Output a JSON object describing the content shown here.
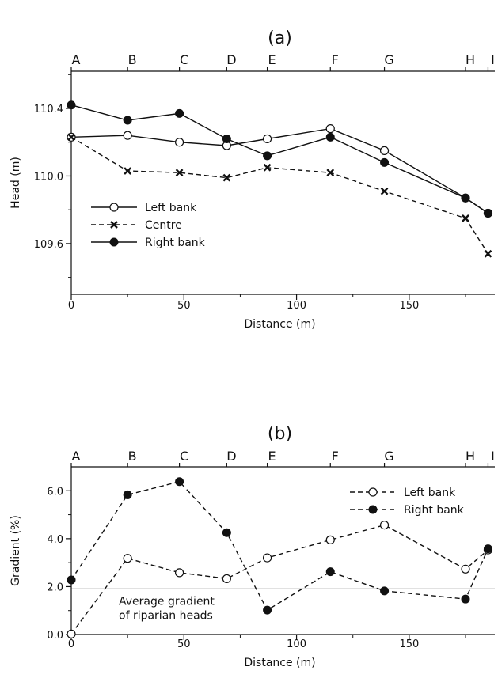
{
  "chart_data": [
    {
      "type": "line",
      "panel_label": "(a)",
      "xlabel": "Distance (m)",
      "ylabel": "Head (m)",
      "xlim": [
        0,
        188
      ],
      "ylim": [
        109.3,
        110.62
      ],
      "xticks": [
        0,
        50,
        100,
        150
      ],
      "yticks": [
        109.6,
        110.0,
        110.4
      ],
      "ytick_labels": [
        "109.6",
        "110.0",
        "110.4"
      ],
      "top_labels": [
        {
          "label": "A",
          "x": 0
        },
        {
          "label": "B",
          "x": 25
        },
        {
          "label": "C",
          "x": 48
        },
        {
          "label": "D",
          "x": 69
        },
        {
          "label": "E",
          "x": 87
        },
        {
          "label": "F",
          "x": 115
        },
        {
          "label": "G",
          "x": 139
        },
        {
          "label": "H",
          "x": 175
        },
        {
          "label": "I",
          "x": 185
        }
      ],
      "legend_position": "bottom-left",
      "series": [
        {
          "name": "Left bank",
          "marker": "open-circle",
          "line": "solid",
          "x": [
            0,
            25,
            48,
            69,
            87,
            115,
            139,
            175,
            185
          ],
          "y": [
            110.23,
            110.24,
            110.2,
            110.18,
            110.22,
            110.28,
            110.15,
            109.87,
            109.78
          ]
        },
        {
          "name": "Centre",
          "marker": "cross",
          "line": "dashed",
          "x": [
            0,
            25,
            48,
            69,
            87,
            115,
            139,
            175,
            185
          ],
          "y": [
            110.23,
            110.03,
            110.02,
            109.99,
            110.05,
            110.02,
            109.91,
            109.75,
            109.54
          ]
        },
        {
          "name": "Right bank",
          "marker": "filled-circle",
          "line": "solid",
          "x": [
            0,
            25,
            48,
            69,
            87,
            115,
            139,
            175,
            185
          ],
          "y": [
            110.42,
            110.33,
            110.37,
            110.22,
            110.12,
            110.23,
            110.08,
            109.87,
            109.78
          ]
        }
      ]
    },
    {
      "type": "line",
      "panel_label": "(b)",
      "xlabel": "Distance (m)",
      "ylabel": "Gradient (%)",
      "xlim": [
        0,
        188
      ],
      "ylim": [
        0,
        7
      ],
      "xticks": [
        0,
        50,
        100,
        150
      ],
      "yticks": [
        0,
        2,
        4,
        6
      ],
      "ytick_labels": [
        "0.0",
        "2.0",
        "4.0",
        "6.0"
      ],
      "top_labels": [
        {
          "label": "A",
          "x": 0
        },
        {
          "label": "B",
          "x": 25
        },
        {
          "label": "C",
          "x": 48
        },
        {
          "label": "D",
          "x": 69
        },
        {
          "label": "E",
          "x": 87
        },
        {
          "label": "F",
          "x": 115
        },
        {
          "label": "G",
          "x": 139
        },
        {
          "label": "H",
          "x": 175
        },
        {
          "label": "I",
          "x": 185
        }
      ],
      "legend_position": "top-right",
      "reference_line": {
        "y": 1.9,
        "label_lines": [
          "Average gradient",
          "of riparian heads"
        ]
      },
      "series": [
        {
          "name": "Left bank",
          "marker": "open-circle",
          "line": "dashed",
          "x": [
            0,
            25,
            48,
            69,
            87,
            115,
            139,
            175,
            185
          ],
          "y": [
            0.02,
            3.18,
            2.58,
            2.33,
            3.2,
            3.95,
            4.57,
            2.73,
            3.53
          ]
        },
        {
          "name": "Right bank",
          "marker": "filled-circle",
          "line": "dashed",
          "x": [
            0,
            25,
            48,
            69,
            87,
            115,
            139,
            175,
            185
          ],
          "y": [
            2.28,
            5.83,
            6.38,
            4.25,
            1.02,
            2.62,
            1.82,
            1.48,
            3.58
          ]
        }
      ]
    }
  ]
}
